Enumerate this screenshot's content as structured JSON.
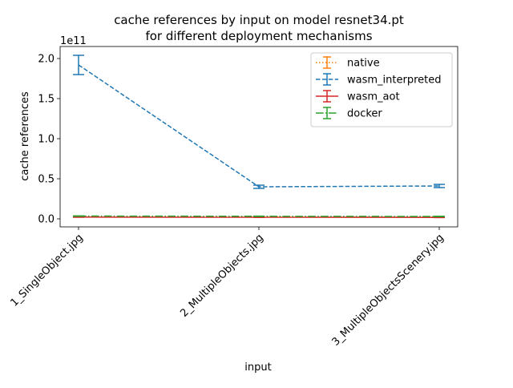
{
  "chart_data": {
    "type": "line",
    "title_line1": "cache references by input on model resnet34.pt",
    "title_line2": "for different deployment mechanisms",
    "xlabel": "input",
    "ylabel": "cache references",
    "offset_text": "1e11",
    "categories": [
      "1_SingleObject.jpg",
      "2_MultipleObjects.jpg",
      "3_MultipleObjectsScenery.jpg"
    ],
    "ylim": [
      -0.1,
      2.15
    ],
    "yticks": [
      0.0,
      0.5,
      1.0,
      1.5,
      2.0
    ],
    "ytick_labels": [
      "0.0",
      "0.5",
      "1.0",
      "1.5",
      "2.0"
    ],
    "series": [
      {
        "name": "native",
        "color": "#ff7f0e",
        "dash": "dotted",
        "values": [
          0.025,
          0.022,
          0.021
        ],
        "err": [
          0.002,
          0.002,
          0.002
        ]
      },
      {
        "name": "wasm_interpreted",
        "color": "#1f77b4",
        "dash": "dashed",
        "values": [
          1.92,
          0.4,
          0.41
        ],
        "err": [
          0.12,
          0.02,
          0.02
        ]
      },
      {
        "name": "wasm_aot",
        "color": "#d62728",
        "dash": "solid",
        "values": [
          0.022,
          0.02,
          0.018
        ],
        "err": [
          0.002,
          0.002,
          0.002
        ]
      },
      {
        "name": "docker",
        "color": "#2ca02c",
        "dash": "dashdot",
        "values": [
          0.035,
          0.032,
          0.03
        ],
        "err": [
          0.002,
          0.002,
          0.002
        ]
      }
    ],
    "legend_position": "top-right",
    "grid": false
  }
}
